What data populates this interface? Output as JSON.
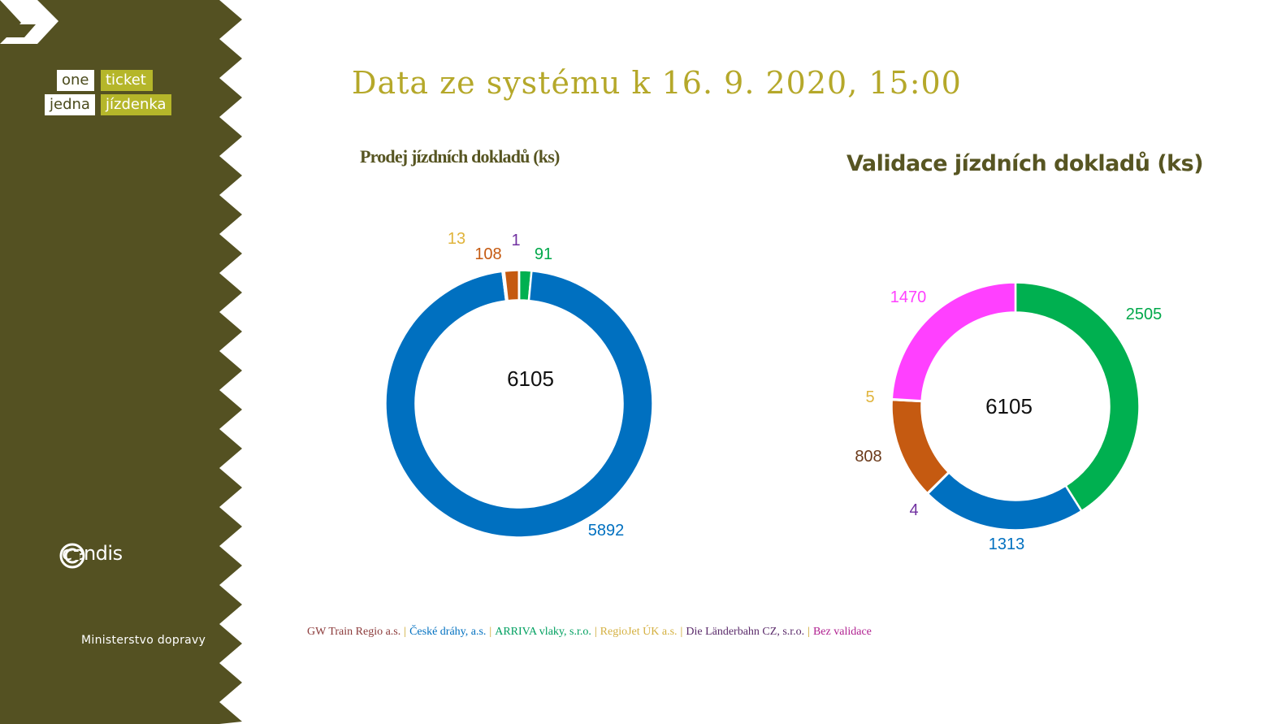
{
  "header": {
    "title": "Data ze systému k 16. 9. 2020, 15:00"
  },
  "sidebar": {
    "logo": {
      "w1": "one",
      "w2": "ticket",
      "w3": "jedna",
      "w4": "jízdenka"
    },
    "cendis": "cendis",
    "ministry": "Ministerstvo dopravy"
  },
  "colors": {
    "sidebar_bg": "#545122",
    "title": "#b5a82a",
    "chart_title": "#575522"
  },
  "chart_data": [
    {
      "type": "pie",
      "variant": "donut",
      "title": "Prodej jízdních dokladů (ks)",
      "center_label": "6105",
      "slices": [
        {
          "label": "91",
          "value": 91,
          "color": "#00b050"
        },
        {
          "label": "5892",
          "value": 5892,
          "color": "#0070c0"
        },
        {
          "label": "13",
          "value": 13,
          "color": "#e0b43c"
        },
        {
          "label": "108",
          "value": 108,
          "color": "#c55a11"
        },
        {
          "label": "1",
          "value": 1,
          "color": "#7030a0"
        }
      ]
    },
    {
      "type": "pie",
      "variant": "donut",
      "title": "Validace jízdních dokladů (ks)",
      "center_label": "6105",
      "slices": [
        {
          "label": "2505",
          "value": 2505,
          "color": "#00b050"
        },
        {
          "label": "1313",
          "value": 1313,
          "color": "#0070c0"
        },
        {
          "label": "4",
          "value": 4,
          "color": "#7030a0"
        },
        {
          "label": "808",
          "value": 808,
          "color": "#c55a11"
        },
        {
          "label": "5",
          "value": 5,
          "color": "#e0b43c"
        },
        {
          "label": "1470",
          "value": 1470,
          "color": "#ff40ff"
        }
      ]
    }
  ],
  "legend": {
    "items": [
      {
        "label": "GW Train Regio a.s.",
        "color": "#8b3a3a"
      },
      {
        "label": "České dráhy, a.s.",
        "color": "#0070c0"
      },
      {
        "label": "ARRIVA vlaky, s.r.o.",
        "color": "#00a060"
      },
      {
        "label": "RegioJet ÚK a.s.",
        "color": "#d4b040"
      },
      {
        "label": "Die Länderbahn CZ, s.r.o.",
        "color": "#5a2a6a"
      },
      {
        "label": "Bez validace",
        "color": "#b02090"
      }
    ],
    "separator": "|",
    "separator_color": "#c8a020"
  }
}
